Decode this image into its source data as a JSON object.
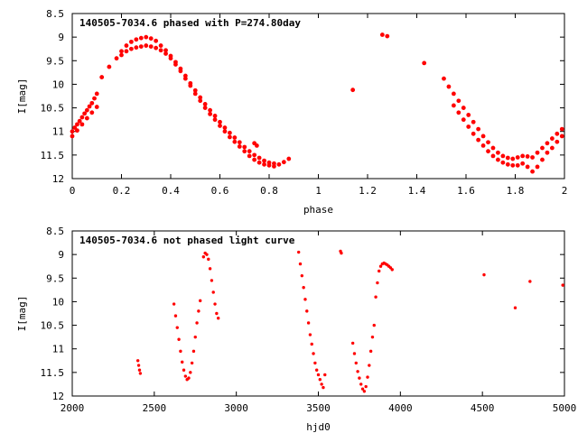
{
  "chart_data": [
    {
      "type": "scatter",
      "title": "140505-7034.6 phased with P=274.80day",
      "xlabel": "phase",
      "ylabel": "I[mag]",
      "xlim": [
        0,
        2
      ],
      "ylim": [
        12,
        8.5
      ],
      "y_reversed": true,
      "xticks": [
        0,
        0.2,
        0.4,
        0.6,
        0.8,
        1,
        1.2,
        1.4,
        1.6,
        1.8,
        2
      ],
      "xtick_labels": [
        "0",
        "0.2",
        "0.4",
        "0.6",
        "0.8",
        "1",
        "1.2",
        "1.4",
        "1.6",
        "1.8",
        "2"
      ],
      "yticks": [
        8.5,
        9,
        9.5,
        10,
        10.5,
        11,
        11.5,
        12
      ],
      "ytick_labels": [
        "8.5",
        "9",
        "9.5",
        "10",
        "10.5",
        "11",
        "11.5",
        "12"
      ],
      "grid": false,
      "marker_color": "#ff0000",
      "series": [
        {
          "x": [
            0.0,
            0.01,
            0.02,
            0.03,
            0.04,
            0.05,
            0.06,
            0.07,
            0.08,
            0.09,
            0.1,
            0.12,
            0.15,
            0.18,
            0.2,
            0.22,
            0.24,
            0.26,
            0.28,
            0.3,
            0.32,
            0.34,
            0.36,
            0.38,
            0.4,
            0.42,
            0.44,
            0.46,
            0.48,
            0.5,
            0.52,
            0.54,
            0.56,
            0.58,
            0.6,
            0.62,
            0.64,
            0.66,
            0.68,
            0.7,
            0.72,
            0.74,
            0.76,
            0.78,
            0.8,
            0.82,
            0.84,
            0.86,
            0.88,
            0.0,
            0.02,
            0.04,
            0.06,
            0.08,
            0.1,
            0.2,
            0.22,
            0.24,
            0.26,
            0.28,
            0.3,
            0.32,
            0.34,
            0.36,
            0.38,
            0.4,
            0.42,
            0.44,
            0.46,
            0.48,
            0.5,
            0.52,
            0.54,
            0.56,
            0.58,
            0.6,
            0.62,
            0.64,
            0.66,
            0.68,
            0.7,
            0.72,
            0.74,
            0.76,
            0.78,
            0.8,
            0.82,
            0.74,
            0.75,
            1.14,
            1.26,
            1.28,
            1.43,
            1.51,
            1.53,
            1.55,
            1.57,
            1.59,
            1.61,
            1.63,
            1.65,
            1.67,
            1.69,
            1.71,
            1.73,
            1.75,
            1.77,
            1.79,
            1.81,
            1.83,
            1.85,
            1.87,
            1.89,
            1.91,
            1.93,
            1.95,
            1.97,
            1.99,
            1.55,
            1.57,
            1.59,
            1.61,
            1.63,
            1.65,
            1.67,
            1.69,
            1.71,
            1.73,
            1.75,
            1.77,
            1.79,
            1.81,
            1.83,
            1.85,
            1.87,
            1.89,
            1.91,
            1.93,
            1.95,
            1.97,
            1.99
          ],
          "y": [
            11.0,
            10.92,
            10.85,
            10.78,
            10.7,
            10.62,
            10.55,
            10.47,
            10.4,
            10.3,
            10.2,
            9.85,
            9.63,
            9.45,
            9.3,
            9.18,
            9.1,
            9.05,
            9.02,
            9.0,
            9.03,
            9.08,
            9.18,
            9.28,
            9.4,
            9.53,
            9.67,
            9.82,
            9.98,
            10.13,
            10.28,
            10.42,
            10.55,
            10.67,
            10.8,
            10.92,
            11.03,
            11.13,
            11.23,
            11.33,
            11.42,
            11.5,
            11.56,
            11.62,
            11.66,
            11.68,
            11.7,
            11.65,
            11.58,
            11.1,
            10.98,
            10.85,
            10.72,
            10.6,
            10.48,
            9.38,
            9.3,
            9.25,
            9.22,
            9.2,
            9.18,
            9.2,
            9.23,
            9.28,
            9.35,
            9.45,
            9.58,
            9.72,
            9.88,
            10.03,
            10.2,
            10.35,
            10.5,
            10.63,
            10.75,
            10.88,
            11.0,
            11.12,
            11.22,
            11.32,
            11.42,
            11.52,
            11.6,
            11.66,
            11.7,
            11.72,
            11.74,
            11.25,
            11.3,
            10.12,
            8.95,
            8.98,
            9.55,
            9.88,
            10.05,
            10.2,
            10.35,
            10.5,
            10.65,
            10.8,
            10.95,
            11.1,
            11.23,
            11.35,
            11.45,
            11.52,
            11.56,
            11.58,
            11.55,
            11.52,
            11.53,
            11.55,
            11.45,
            11.35,
            11.25,
            11.15,
            11.05,
            10.95,
            10.45,
            10.6,
            10.75,
            10.9,
            11.05,
            11.18,
            11.3,
            11.42,
            11.52,
            11.6,
            11.66,
            11.7,
            11.72,
            11.72,
            11.68,
            11.75,
            11.85,
            11.75,
            11.6,
            11.45,
            11.35,
            11.22,
            11.1
          ]
        }
      ]
    },
    {
      "type": "scatter",
      "title": "140505-7034.6 not phased light curve",
      "xlabel": "hjd0",
      "ylabel": "I[mag]",
      "xlim": [
        2000,
        5000
      ],
      "ylim": [
        12,
        8.5
      ],
      "y_reversed": true,
      "xticks": [
        2000,
        2500,
        3000,
        3500,
        4000,
        4500,
        5000
      ],
      "xtick_labels": [
        "2000",
        "2500",
        "3000",
        "3500",
        "4000",
        "4500",
        "5000"
      ],
      "yticks": [
        8.5,
        9,
        9.5,
        10,
        10.5,
        11,
        11.5,
        12
      ],
      "ytick_labels": [
        "8.5",
        "9",
        "9.5",
        "10",
        "10.5",
        "11",
        "11.5",
        "12"
      ],
      "grid": false,
      "marker_color": "#ff0000",
      "series": [
        {
          "x": [
            2400,
            2405,
            2410,
            2415,
            2620,
            2630,
            2640,
            2650,
            2660,
            2670,
            2680,
            2690,
            2700,
            2710,
            2720,
            2730,
            2740,
            2750,
            2760,
            2770,
            2780,
            2800,
            2810,
            2820,
            2830,
            2840,
            2850,
            2860,
            2870,
            2880,
            2890,
            3380,
            3390,
            3400,
            3410,
            3420,
            3430,
            3440,
            3450,
            3460,
            3470,
            3480,
            3490,
            3500,
            3510,
            3520,
            3530,
            3540,
            3635,
            3640,
            3710,
            3720,
            3730,
            3740,
            3750,
            3760,
            3770,
            3780,
            3790,
            3800,
            3810,
            3820,
            3830,
            3840,
            3850,
            3860,
            3870,
            3880,
            3890,
            3900,
            3910,
            3920,
            3930,
            3940,
            3950,
            4510,
            4700,
            4790,
            4990
          ],
          "y": [
            11.25,
            11.35,
            11.45,
            11.52,
            10.05,
            10.3,
            10.55,
            10.8,
            11.05,
            11.28,
            11.45,
            11.58,
            11.65,
            11.62,
            11.5,
            11.3,
            11.05,
            10.75,
            10.45,
            10.2,
            9.98,
            9.05,
            8.97,
            9.0,
            9.1,
            9.3,
            9.55,
            9.8,
            10.05,
            10.25,
            10.35,
            8.95,
            9.2,
            9.45,
            9.7,
            9.95,
            10.2,
            10.45,
            10.7,
            10.9,
            11.1,
            11.3,
            11.45,
            11.55,
            11.65,
            11.75,
            11.82,
            11.55,
            8.93,
            8.97,
            10.88,
            11.1,
            11.3,
            11.48,
            11.62,
            11.75,
            11.85,
            11.9,
            11.8,
            11.6,
            11.35,
            11.05,
            10.75,
            10.5,
            9.9,
            9.6,
            9.35,
            9.25,
            9.2,
            9.18,
            9.2,
            9.22,
            9.25,
            9.28,
            9.32,
            9.43,
            10.13,
            9.57,
            9.65
          ]
        }
      ]
    }
  ]
}
